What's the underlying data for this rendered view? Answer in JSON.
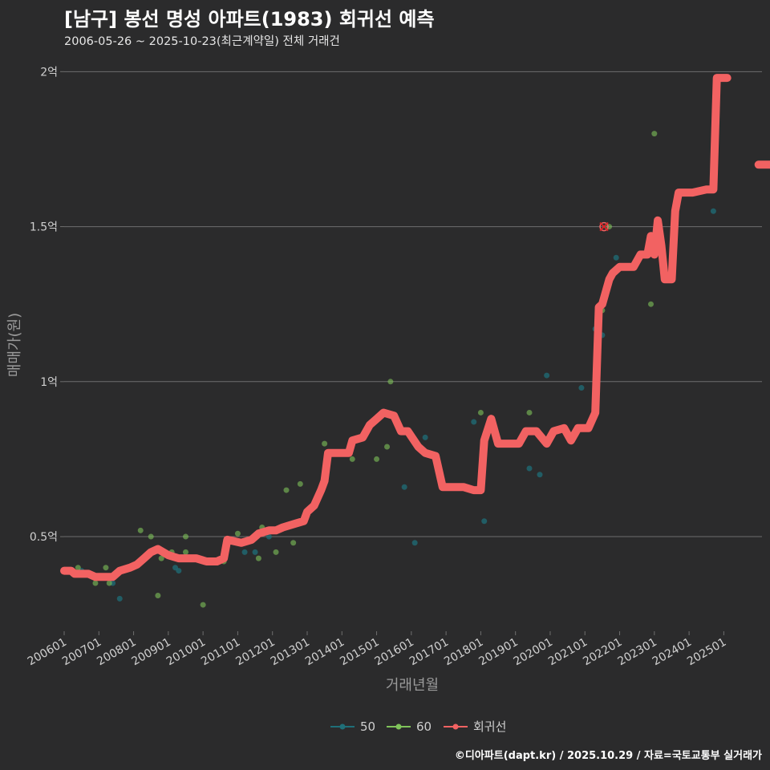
{
  "header": {
    "title": "[남구] 봉선 명성 아파트(1983) 회귀선 예측",
    "subtitle": "2006-05-26 ~ 2025-10-23(최근계약일) 전체 거래건"
  },
  "footer": "©디아파트(dapt.kr) / 2025.10.29 / 자료=국토교통부 실거래가",
  "colors": {
    "background": "#2b2b2c",
    "grid": "#6e6e6e",
    "series_50": "#1f6f78",
    "series_60": "#7fc35a",
    "regression": "#f26262",
    "marker": "#d62728"
  },
  "chart_data": {
    "type": "line",
    "title": "[남구] 봉선 명성 아파트(1983) 회귀선 예측",
    "xlabel": "거래년월",
    "ylabel": "매매가(원)",
    "xlim": [
      2006.0,
      2026.1
    ],
    "ylim": [
      0.2,
      2.05
    ],
    "x_ticks": [
      "200601",
      "200701",
      "200801",
      "200901",
      "201001",
      "201101",
      "201201",
      "201301",
      "201401",
      "201501",
      "201601",
      "201701",
      "201801",
      "201901",
      "202001",
      "202101",
      "202201",
      "202301",
      "202401",
      "202501"
    ],
    "y_ticks": [
      {
        "value": 0.5,
        "label": "0.5억"
      },
      {
        "value": 1.0,
        "label": "1억"
      },
      {
        "value": 1.5,
        "label": "1.5억"
      },
      {
        "value": 2.0,
        "label": "2억"
      }
    ],
    "legend": [
      {
        "name": "50",
        "color": "#1f6f78"
      },
      {
        "name": "60",
        "color": "#7fc35a"
      },
      {
        "name": "회귀선",
        "color": "#f26262"
      }
    ],
    "legend_position": "bottom",
    "series": [
      {
        "name": "50",
        "points": [
          [
            2006.5,
            0.39
          ],
          [
            2007.4,
            0.35
          ],
          [
            2007.6,
            0.3
          ],
          [
            2009.2,
            0.4
          ],
          [
            2009.3,
            0.39
          ],
          [
            2011.2,
            0.45
          ],
          [
            2011.5,
            0.45
          ],
          [
            2011.9,
            0.5
          ],
          [
            2015.8,
            0.66
          ],
          [
            2016.1,
            0.48
          ],
          [
            2016.4,
            0.82
          ],
          [
            2017.8,
            0.87
          ],
          [
            2018.1,
            0.55
          ],
          [
            2019.4,
            0.72
          ],
          [
            2019.7,
            0.7
          ],
          [
            2019.9,
            1.02
          ],
          [
            2020.9,
            0.98
          ],
          [
            2021.3,
            1.17
          ],
          [
            2021.5,
            1.15
          ],
          [
            2021.9,
            1.4
          ],
          [
            2024.7,
            1.55
          ]
        ]
      },
      {
        "name": "60",
        "points": [
          [
            2006.4,
            0.4
          ],
          [
            2006.9,
            0.35
          ],
          [
            2007.2,
            0.4
          ],
          [
            2007.3,
            0.35
          ],
          [
            2007.9,
            0.4
          ],
          [
            2008.2,
            0.52
          ],
          [
            2008.5,
            0.5
          ],
          [
            2008.7,
            0.31
          ],
          [
            2008.8,
            0.43
          ],
          [
            2009.0,
            0.44
          ],
          [
            2009.1,
            0.45
          ],
          [
            2009.5,
            0.5
          ],
          [
            2009.5,
            0.45
          ],
          [
            2010.0,
            0.28
          ],
          [
            2010.6,
            0.42
          ],
          [
            2011.0,
            0.51
          ],
          [
            2011.6,
            0.43
          ],
          [
            2011.7,
            0.53
          ],
          [
            2012.1,
            0.45
          ],
          [
            2012.4,
            0.65
          ],
          [
            2012.6,
            0.48
          ],
          [
            2012.8,
            0.67
          ],
          [
            2013.5,
            0.8
          ],
          [
            2014.3,
            0.75
          ],
          [
            2014.6,
            0.82
          ],
          [
            2015.0,
            0.75
          ],
          [
            2015.3,
            0.79
          ],
          [
            2015.4,
            1.0
          ],
          [
            2018.0,
            0.9
          ],
          [
            2019.4,
            0.9
          ],
          [
            2021.5,
            1.23
          ],
          [
            2021.7,
            1.5
          ],
          [
            2022.9,
            1.25
          ],
          [
            2023.0,
            1.8
          ]
        ]
      },
      {
        "name": "회귀선",
        "points": [
          [
            2006.0,
            0.39
          ],
          [
            2006.2,
            0.39
          ],
          [
            2006.3,
            0.38
          ],
          [
            2006.5,
            0.38
          ],
          [
            2006.7,
            0.38
          ],
          [
            2006.9,
            0.37
          ],
          [
            2007.4,
            0.37
          ],
          [
            2007.6,
            0.39
          ],
          [
            2007.9,
            0.4
          ],
          [
            2008.1,
            0.41
          ],
          [
            2008.3,
            0.43
          ],
          [
            2008.5,
            0.45
          ],
          [
            2008.7,
            0.46
          ],
          [
            2009.0,
            0.44
          ],
          [
            2009.3,
            0.43
          ],
          [
            2009.8,
            0.43
          ],
          [
            2010.1,
            0.42
          ],
          [
            2010.4,
            0.42
          ],
          [
            2010.6,
            0.43
          ],
          [
            2010.7,
            0.49
          ],
          [
            2011.1,
            0.48
          ],
          [
            2011.4,
            0.49
          ],
          [
            2011.6,
            0.51
          ],
          [
            2011.9,
            0.52
          ],
          [
            2012.1,
            0.52
          ],
          [
            2012.3,
            0.53
          ],
          [
            2012.6,
            0.54
          ],
          [
            2012.9,
            0.55
          ],
          [
            2013.0,
            0.58
          ],
          [
            2013.2,
            0.6
          ],
          [
            2013.4,
            0.65
          ],
          [
            2013.5,
            0.68
          ],
          [
            2013.6,
            0.77
          ],
          [
            2014.0,
            0.77
          ],
          [
            2014.2,
            0.77
          ],
          [
            2014.3,
            0.81
          ],
          [
            2014.6,
            0.82
          ],
          [
            2014.8,
            0.86
          ],
          [
            2015.0,
            0.88
          ],
          [
            2015.2,
            0.9
          ],
          [
            2015.5,
            0.89
          ],
          [
            2015.7,
            0.84
          ],
          [
            2015.9,
            0.84
          ],
          [
            2016.2,
            0.79
          ],
          [
            2016.4,
            0.77
          ],
          [
            2016.7,
            0.76
          ],
          [
            2016.9,
            0.66
          ],
          [
            2017.5,
            0.66
          ],
          [
            2017.8,
            0.65
          ],
          [
            2018.0,
            0.65
          ],
          [
            2018.1,
            0.81
          ],
          [
            2018.3,
            0.88
          ],
          [
            2018.5,
            0.8
          ],
          [
            2018.8,
            0.8
          ],
          [
            2019.1,
            0.8
          ],
          [
            2019.3,
            0.84
          ],
          [
            2019.6,
            0.84
          ],
          [
            2019.9,
            0.8
          ],
          [
            2020.1,
            0.84
          ],
          [
            2020.4,
            0.85
          ],
          [
            2020.6,
            0.81
          ],
          [
            2020.8,
            0.85
          ],
          [
            2021.1,
            0.85
          ],
          [
            2021.3,
            0.9
          ],
          [
            2021.4,
            1.24
          ],
          [
            2021.5,
            1.25
          ],
          [
            2021.7,
            1.33
          ],
          [
            2021.8,
            1.35
          ],
          [
            2022.0,
            1.37
          ],
          [
            2022.4,
            1.37
          ],
          [
            2022.6,
            1.41
          ],
          [
            2022.8,
            1.41
          ],
          [
            2022.9,
            1.47
          ],
          [
            2023.0,
            1.41
          ],
          [
            2023.1,
            1.52
          ],
          [
            2023.2,
            1.44
          ],
          [
            2023.3,
            1.33
          ],
          [
            2023.5,
            1.33
          ],
          [
            2023.6,
            1.55
          ],
          [
            2023.7,
            1.61
          ],
          [
            2024.1,
            1.61
          ],
          [
            2024.5,
            1.62
          ],
          [
            2024.7,
            1.62
          ],
          [
            2024.8,
            1.98
          ],
          [
            2025.1,
            1.98
          ]
        ],
        "extra_segments": [
          [
            [
              2026.0,
              1.7
            ],
            [
              2026.7,
              1.7
            ]
          ]
        ]
      }
    ],
    "annotations": [
      {
        "x": 2021.55,
        "y": 1.5,
        "marker": "x"
      }
    ]
  }
}
